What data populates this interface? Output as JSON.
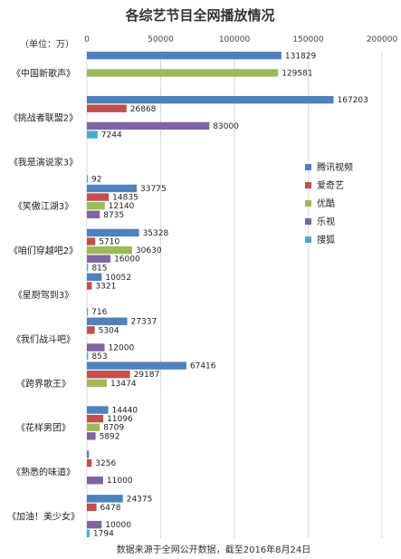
{
  "chart_data": {
    "type": "bar",
    "orientation": "horizontal",
    "title": "各综艺节目全网播放情况",
    "unit_label": "（单位：万）",
    "source_note": "数据来源于全网公开数据，截至2016年8月24日",
    "xlim": [
      0,
      200000
    ],
    "xticks": [
      "0",
      "50000",
      "100000",
      "150000",
      "200000"
    ],
    "grid": true,
    "legend_position": "right",
    "categories": [
      "《中国新歌声》",
      "《挑战者联盟2》",
      "《我是演说家3》",
      "《笑傲江湖3》",
      "《咱们穿越吧2》",
      "《星厨驾到3》",
      "《我们战斗吧》",
      "《跨界歌王》",
      "《花样男团》",
      "《熟悉的味道》",
      "《加油！美少女》"
    ],
    "series": [
      {
        "name": "腾讯视频",
        "color": "#4f81bd",
        "values": [
          131829,
          167203,
          null,
          33775,
          35328,
          10052,
          27337,
          67416,
          14440,
          1394,
          24375
        ]
      },
      {
        "name": "爱奇艺",
        "color": "#c0504d",
        "values": [
          null,
          26868,
          null,
          14835,
          5710,
          3321,
          5304,
          29187,
          11096,
          3256,
          6478
        ]
      },
      {
        "name": "优酷",
        "color": "#9bbb59",
        "values": [
          129581,
          null,
          null,
          12140,
          30630,
          null,
          null,
          13474,
          8709,
          null,
          null
        ]
      },
      {
        "name": "乐视",
        "color": "#8064a2",
        "values": [
          null,
          83000,
          null,
          8735,
          16000,
          null,
          12000,
          null,
          5892,
          11000,
          10000
        ]
      },
      {
        "name": "搜狐",
        "color": "#4bacc6",
        "values": [
          null,
          7244,
          92,
          null,
          815,
          716,
          853,
          null,
          null,
          null,
          1794
        ]
      }
    ],
    "series_label_text": [
      [
        "131829",
        "167203",
        "",
        "33775",
        "35328",
        "10052",
        "27337",
        "67416",
        "14440",
        "",
        "24375"
      ],
      [
        "",
        "26868",
        "",
        "14835",
        "5710",
        "3321",
        "5304",
        "29187",
        "11096",
        "3256",
        "6478"
      ],
      [
        "129581",
        "",
        "",
        "12140",
        "30630",
        "",
        "",
        "13474",
        "8709",
        "",
        ""
      ],
      [
        "",
        "83000",
        "",
        "8735",
        "16000",
        "",
        "12000",
        "",
        "5892",
        "11000",
        "10000"
      ],
      [
        "",
        "7244",
        "92",
        "",
        "815",
        "716",
        "853",
        "",
        "",
        "",
        "1794"
      ]
    ]
  }
}
